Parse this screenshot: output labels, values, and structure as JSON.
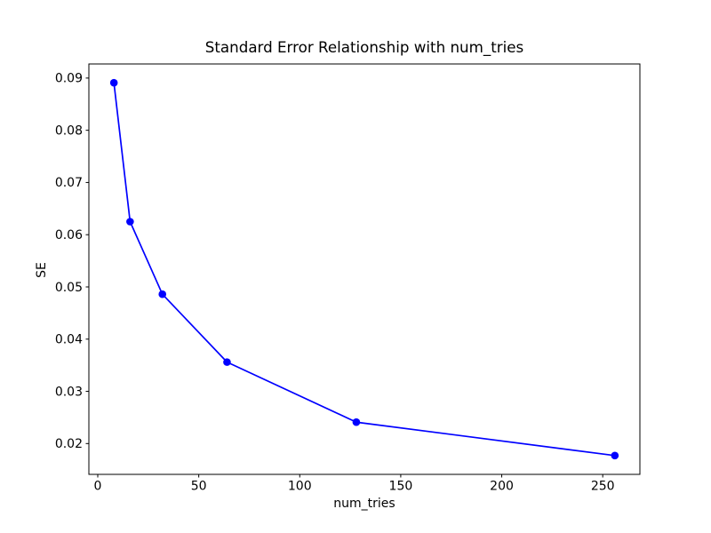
{
  "figure": {
    "background": "#ffffff",
    "spine_color": "#000000"
  },
  "chart_data": {
    "type": "line",
    "title": "Standard Error Relationship with num_tries",
    "xlabel": "num_tries",
    "ylabel": "SE",
    "x": [
      8,
      16,
      32,
      64,
      128,
      256
    ],
    "y": [
      0.0891,
      0.0625,
      0.0486,
      0.0356,
      0.0241,
      0.0177
    ],
    "line_color": "#0000ff",
    "marker": "circle",
    "xticks": [
      0,
      50,
      100,
      150,
      200,
      250
    ],
    "xtick_labels": [
      "0",
      "50",
      "100",
      "150",
      "200",
      "250"
    ],
    "yticks": [
      0.02,
      0.03,
      0.04,
      0.05,
      0.06,
      0.07,
      0.08,
      0.09
    ],
    "ytick_labels": [
      "0.02",
      "0.03",
      "0.04",
      "0.05",
      "0.06",
      "0.07",
      "0.08",
      "0.09"
    ],
    "xlim": [
      -4.4,
      268.4
    ],
    "ylim": [
      0.0141,
      0.0927
    ],
    "grid": false,
    "legend": null
  }
}
